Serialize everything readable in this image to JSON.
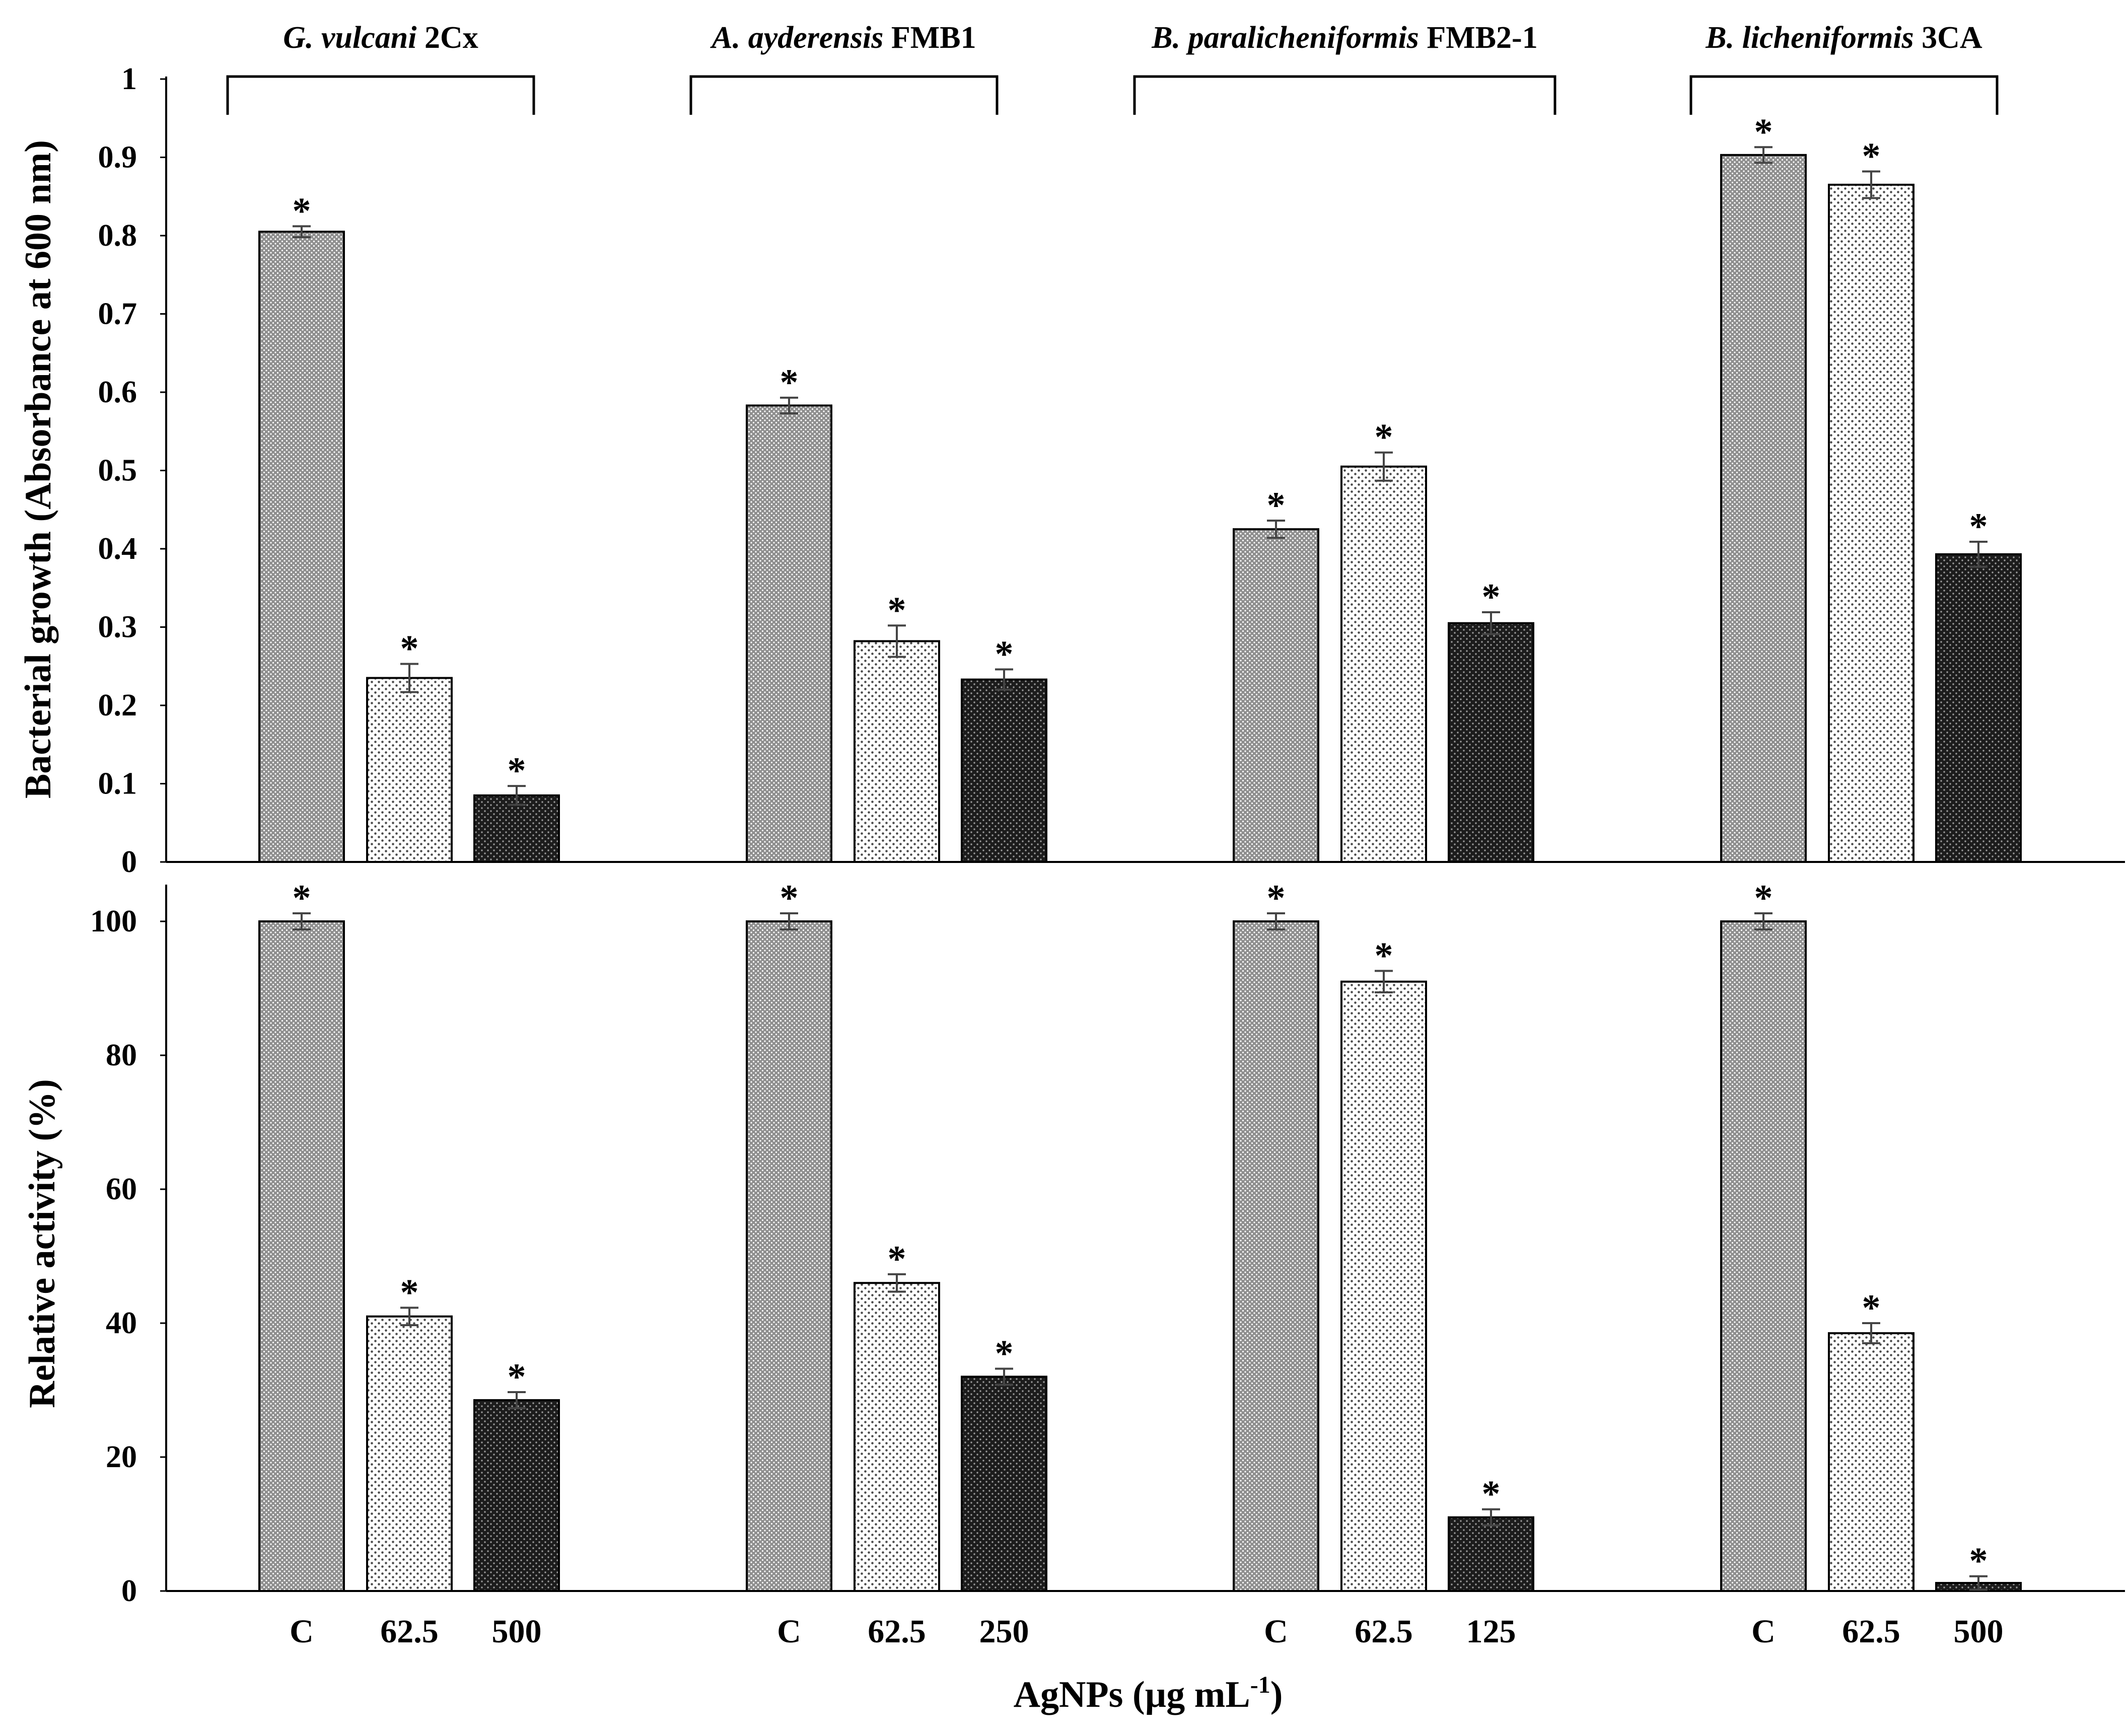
{
  "chart_data": [
    {
      "type": "bar",
      "panel": "top",
      "ylabel": "Bacterial growth (Absorbance at 600 nm)",
      "ylim": [
        0,
        1
      ],
      "yticks": [
        "0",
        "0.1",
        "0.2",
        "0.3",
        "0.4",
        "0.5",
        "0.6",
        "0.7",
        "0.8",
        "0.9",
        "1"
      ],
      "groups": [
        {
          "organism": "G. vulcani",
          "strain": "2Cx",
          "values": [
            0.805,
            0.235,
            0.085
          ],
          "errors": [
            0.007,
            0.018,
            0.012
          ],
          "significance": [
            "*",
            "*",
            "*"
          ]
        },
        {
          "organism": "A. ayderensis",
          "strain": "FMB1",
          "values": [
            0.583,
            0.282,
            0.233
          ],
          "errors": [
            0.01,
            0.02,
            0.013
          ],
          "significance": [
            "*",
            "*",
            "*"
          ]
        },
        {
          "organism": "B. paralicheniformis",
          "strain": "FMB2-1",
          "values": [
            0.425,
            0.505,
            0.305
          ],
          "errors": [
            0.011,
            0.018,
            0.014
          ],
          "significance": [
            "*",
            "*",
            "*"
          ]
        },
        {
          "organism": "B. licheniformis",
          "strain": "3CA",
          "values": [
            0.903,
            0.865,
            0.393
          ],
          "errors": [
            0.01,
            0.017,
            0.016
          ],
          "significance": [
            "*",
            "*",
            "*"
          ]
        }
      ]
    },
    {
      "type": "bar",
      "panel": "bottom",
      "ylabel": "Relative activity (%)",
      "ylim": [
        0,
        105
      ],
      "yticks": [
        "0",
        "20",
        "40",
        "60",
        "80",
        "100"
      ],
      "xlabel_main": "AgNPs (µg mL",
      "xlabel_exp": "-1",
      "xlabel_close": ")",
      "groups": [
        {
          "categories": [
            "C",
            "62.5",
            "500"
          ],
          "values": [
            100,
            41,
            28.5
          ],
          "errors": [
            1.2,
            1.3,
            1.2
          ],
          "significance": [
            "*",
            "*",
            "*"
          ]
        },
        {
          "categories": [
            "C",
            "62.5",
            "250"
          ],
          "values": [
            100,
            46,
            32
          ],
          "errors": [
            1.2,
            1.3,
            1.2
          ],
          "significance": [
            "*",
            "*",
            "*"
          ]
        },
        {
          "categories": [
            "C",
            "62.5",
            "125"
          ],
          "values": [
            100,
            91,
            11
          ],
          "errors": [
            1.2,
            1.6,
            1.2
          ],
          "significance": [
            "*",
            "*",
            "*"
          ]
        },
        {
          "categories": [
            "C",
            "62.5",
            "500"
          ],
          "values": [
            100,
            38.5,
            1.2
          ],
          "errors": [
            1.2,
            1.5,
            1.0
          ],
          "significance": [
            "*",
            "*",
            "*"
          ]
        }
      ]
    }
  ],
  "colors": {
    "control_fill": "#a0a0a0",
    "low_fill": "#eeeeee",
    "high_fill": "#2a2a2a",
    "bar_stroke": "#000000"
  }
}
